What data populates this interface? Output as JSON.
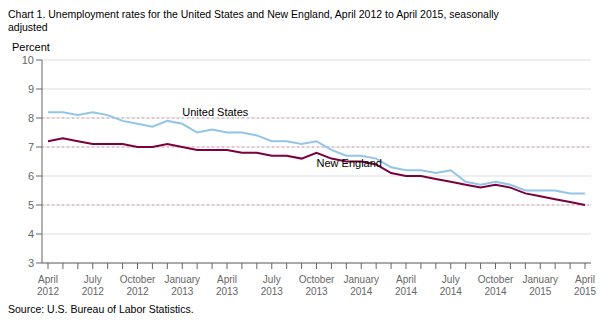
{
  "chart_data": {
    "type": "line",
    "title": "Chart 1. Unemployment rates for the United States and New England, April 2012 to April 2015, seasonally\nadjusted",
    "ylabel": "Percent",
    "source": "Source: U.S. Bureau of Labor Statistics.",
    "categories": [
      "April\n2012",
      null,
      null,
      "July\n2012",
      null,
      null,
      "October\n2012",
      null,
      null,
      "January\n2013",
      null,
      null,
      "April\n2013",
      null,
      null,
      "July\n2013",
      null,
      null,
      "October\n2013",
      null,
      null,
      "January\n2014",
      null,
      null,
      "April\n2014",
      null,
      null,
      "July\n2014",
      null,
      null,
      "October\n2014",
      null,
      null,
      "January\n2015",
      null,
      null,
      "April\n2015"
    ],
    "series": [
      {
        "name": "United States",
        "color": "#92C5E8",
        "values": [
          8.2,
          8.2,
          8.1,
          8.2,
          8.1,
          7.9,
          7.8,
          7.7,
          7.9,
          7.8,
          7.5,
          7.6,
          7.5,
          7.5,
          7.4,
          7.2,
          7.2,
          7.1,
          7.2,
          6.9,
          6.7,
          6.7,
          6.6,
          6.3,
          6.2,
          6.2,
          6.1,
          6.2,
          5.8,
          5.7,
          5.8,
          5.7,
          5.5,
          5.5,
          5.5,
          5.4,
          5.4
        ]
      },
      {
        "name": "New England",
        "color": "#7B003C",
        "values": [
          7.2,
          7.3,
          7.2,
          7.1,
          7.1,
          7.1,
          7.0,
          7.0,
          7.1,
          7.0,
          6.9,
          6.9,
          6.9,
          6.8,
          6.8,
          6.7,
          6.7,
          6.6,
          6.8,
          6.6,
          6.5,
          6.5,
          6.4,
          6.1,
          6.0,
          6.0,
          5.9,
          5.8,
          5.7,
          5.6,
          5.7,
          5.6,
          5.4,
          5.3,
          5.2,
          5.1,
          5.0
        ]
      }
    ],
    "ylim": [
      3,
      10
    ],
    "yticks": [
      3,
      4,
      5,
      6,
      7,
      8,
      9,
      10
    ],
    "grid": true,
    "reference_lines": [
      5.0,
      7.0,
      8.0
    ],
    "reference_line_color": "#D8A0B0"
  }
}
